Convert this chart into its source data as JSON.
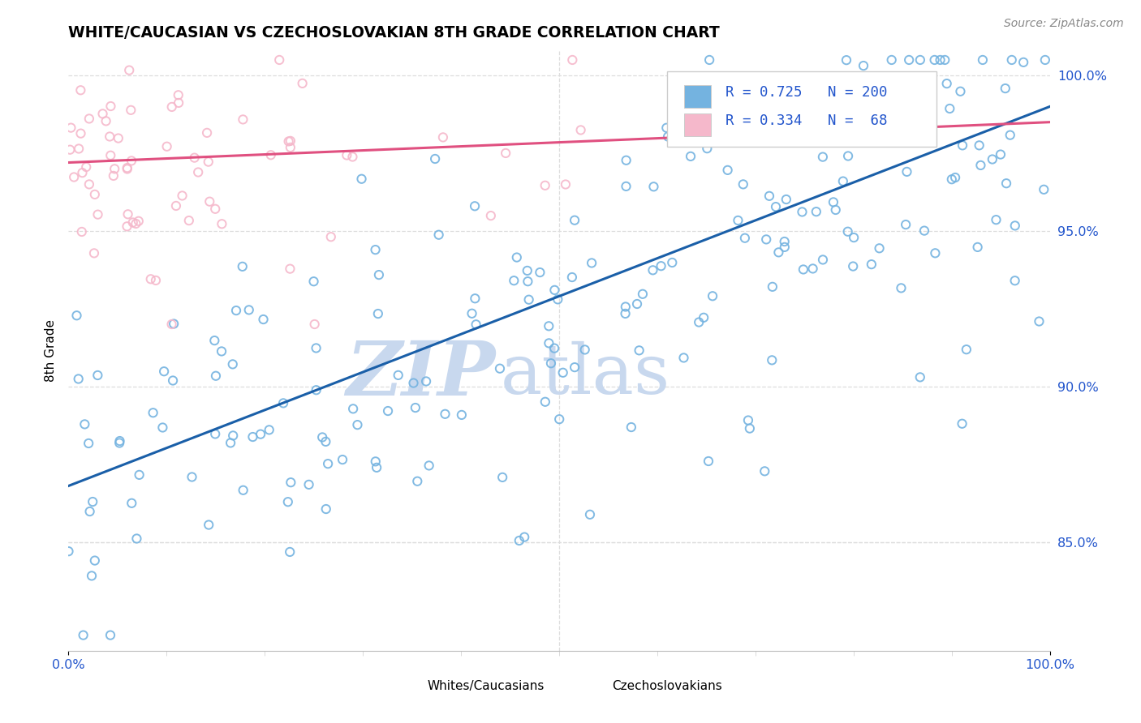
{
  "title": "WHITE/CAUCASIAN VS CZECHOSLOVAKIAN 8TH GRADE CORRELATION CHART",
  "source": "Source: ZipAtlas.com",
  "ylabel": "8th Grade",
  "blue_R": 0.725,
  "blue_N": 200,
  "pink_R": 0.334,
  "pink_N": 68,
  "xmin": 0.0,
  "xmax": 1.0,
  "ymin": 0.815,
  "ymax": 1.008,
  "yticks": [
    0.85,
    0.9,
    0.95,
    1.0
  ],
  "ytick_labels": [
    "85.0%",
    "90.0%",
    "95.0%",
    "100.0%"
  ],
  "xtick_labels": [
    "0.0%",
    "100.0%"
  ],
  "blue_scatter_color": "#74b3e0",
  "pink_scatter_color": "#f5b8cb",
  "blue_line_color": "#1a5fa8",
  "pink_line_color": "#e05080",
  "legend_box_color": "#f5f5ff",
  "legend_border_color": "#cccccc",
  "legend_text_color": "#2255cc",
  "watermark_zip_color": "#c8d8ee",
  "watermark_atlas_color": "#c8d8ee",
  "grid_color": "#dddddd",
  "axis_label_color": "#2255cc",
  "legend_label_blue": "Whites/Caucasians",
  "legend_label_pink": "Czechoslovakians",
  "blue_line_start_y": 0.868,
  "blue_line_end_y": 0.99,
  "pink_line_start_y": 0.972,
  "pink_line_end_y": 0.985
}
